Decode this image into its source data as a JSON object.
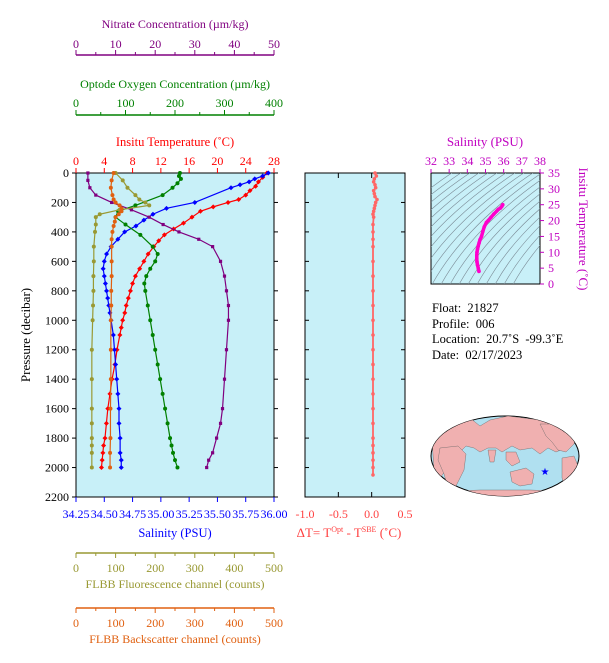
{
  "chart_data": [
    {
      "type": "line",
      "panel": "main profile",
      "y_axis": {
        "label": "Pressure (decibar)",
        "range": [
          0,
          2200
        ],
        "inverted": true,
        "ticks": [
          0,
          200,
          400,
          600,
          800,
          1000,
          1200,
          1400,
          1600,
          1800,
          2000,
          2200
        ],
        "tick_labels": [
          "0",
          "200",
          "400",
          "600",
          "800",
          "1000",
          "1200",
          "1400",
          "1600",
          "1800",
          "2000",
          "2200"
        ]
      },
      "axes": {
        "nitrate": {
          "label": "Nitrate Concentration (µm/kg)",
          "range": [
            0,
            50
          ],
          "ticks": [
            0,
            10,
            20,
            30,
            40,
            50
          ],
          "tick_labels": [
            "0",
            "10",
            "20",
            "30",
            "40",
            "50"
          ],
          "color": "#800080",
          "position": "top"
        },
        "oxygen": {
          "label": "Optode Oxygen Concentration (µm/kg)",
          "range": [
            0,
            400
          ],
          "ticks": [
            0,
            100,
            200,
            300,
            400
          ],
          "tick_labels": [
            "0",
            "100",
            "200",
            "300",
            "400"
          ],
          "color": "#008000",
          "position": "top"
        },
        "temperature": {
          "label": "Insitu Temperature (˚C)",
          "range": [
            0,
            28
          ],
          "ticks": [
            0,
            4,
            8,
            12,
            16,
            20,
            24,
            28
          ],
          "tick_labels": [
            "0",
            "4",
            "8",
            "12",
            "16",
            "20",
            "24",
            "28"
          ],
          "color": "#ff0000",
          "position": "top"
        },
        "salinity": {
          "label": "Salinity (PSU)",
          "range": [
            34.25,
            36.0
          ],
          "ticks": [
            34.25,
            34.5,
            34.75,
            35.0,
            35.25,
            35.5,
            35.75,
            36.0
          ],
          "tick_labels": [
            "34.25",
            "34.50",
            "34.75",
            "35.00",
            "35.25",
            "35.50",
            "35.75",
            "36.00"
          ],
          "color": "#0000ff",
          "position": "bottom"
        },
        "fluorescence": {
          "label": "FLBB Fluorescence channel (counts)",
          "range": [
            0,
            500
          ],
          "ticks": [
            0,
            100,
            200,
            300,
            400,
            500
          ],
          "tick_labels": [
            "0",
            "100",
            "200",
            "300",
            "400",
            "500"
          ],
          "color": "#999933",
          "position": "bottom"
        },
        "backscatter": {
          "label": "FLBB Backscatter channel (counts)",
          "range": [
            0,
            500
          ],
          "ticks": [
            0,
            100,
            200,
            300,
            400,
            500
          ],
          "tick_labels": [
            "0",
            "100",
            "200",
            "300",
            "400",
            "500"
          ],
          "color": "#e06010",
          "position": "bottom"
        }
      },
      "series": [
        {
          "axis": "temperature",
          "color": "#ff0000",
          "marker": "diamond",
          "x": [
            27.0,
            26.4,
            25.8,
            25.4,
            24.6,
            24.0,
            23.0,
            21.5,
            19.4,
            17.6,
            16.4,
            15.2,
            13.8,
            12.5,
            11.7,
            11.0,
            10.2,
            9.6,
            9.0,
            8.4,
            8.0,
            7.7,
            7.4,
            7.1,
            6.9,
            6.6,
            6.4,
            6.2,
            5.8,
            5.5,
            5.1,
            4.8,
            4.5,
            4.3,
            4.1,
            3.9,
            3.8,
            3.7,
            3.6
          ],
          "y": [
            0,
            30,
            60,
            90,
            120,
            150,
            180,
            200,
            230,
            260,
            300,
            340,
            380,
            420,
            460,
            500,
            550,
            600,
            650,
            700,
            750,
            800,
            850,
            900,
            950,
            1000,
            1050,
            1100,
            1200,
            1300,
            1400,
            1500,
            1600,
            1700,
            1800,
            1850,
            1900,
            1950,
            2000
          ]
        },
        {
          "axis": "salinity",
          "color": "#0000ff",
          "marker": "diamond",
          "x": [
            35.95,
            35.9,
            35.83,
            35.78,
            35.7,
            35.62,
            35.3,
            35.05,
            34.93,
            34.85,
            34.78,
            34.68,
            34.62,
            34.56,
            34.52,
            34.5,
            34.49,
            34.5,
            34.51,
            34.52,
            34.53,
            34.54,
            34.55,
            34.56,
            34.58,
            34.59,
            34.6,
            34.61,
            34.62,
            34.63,
            34.63,
            34.64,
            34.64,
            34.65,
            34.65
          ],
          "y": [
            0,
            20,
            40,
            60,
            80,
            100,
            200,
            240,
            280,
            320,
            360,
            400,
            450,
            500,
            550,
            600,
            650,
            700,
            750,
            800,
            850,
            900,
            950,
            1000,
            1100,
            1200,
            1300,
            1400,
            1500,
            1600,
            1700,
            1800,
            1900,
            1950,
            2000
          ]
        },
        {
          "axis": "oxygen",
          "color": "#008000",
          "marker": "circle",
          "x": [
            210,
            208,
            212,
            205,
            195,
            175,
            120,
            85,
            80,
            100,
            130,
            155,
            165,
            160,
            150,
            142,
            138,
            140,
            145,
            150,
            155,
            160,
            165,
            170,
            175,
            180,
            185,
            190,
            193,
            196,
            200,
            205
          ],
          "y": [
            0,
            20,
            40,
            70,
            100,
            150,
            220,
            260,
            300,
            350,
            420,
            500,
            550,
            600,
            650,
            700,
            750,
            800,
            900,
            1000,
            1100,
            1200,
            1300,
            1400,
            1500,
            1600,
            1700,
            1800,
            1850,
            1900,
            1950,
            2000
          ]
        },
        {
          "axis": "nitrate",
          "color": "#800080",
          "marker": "square",
          "x": [
            3.0,
            3.0,
            3.5,
            5.0,
            9.0,
            14.0,
            18.5,
            22.0,
            26.0,
            31.0,
            34.5,
            36.5,
            37.5,
            38.0,
            38.5,
            38.5,
            38.0,
            37.5,
            37.0,
            36.5,
            35.5,
            34.5,
            33.5,
            33.0
          ],
          "y": [
            0,
            50,
            100,
            150,
            200,
            250,
            300,
            350,
            400,
            450,
            500,
            600,
            700,
            800,
            900,
            1000,
            1200,
            1400,
            1600,
            1700,
            1800,
            1900,
            1950,
            2000
          ]
        },
        {
          "axis": "fluorescence",
          "color": "#999933",
          "marker": "circle",
          "x": [
            100,
            118,
            130,
            150,
            160,
            175,
            185,
            110,
            60,
            50,
            50,
            48,
            45,
            45,
            44,
            44,
            43,
            42,
            40,
            40,
            40,
            40,
            40,
            40,
            40,
            40
          ],
          "y": [
            0,
            50,
            100,
            150,
            180,
            200,
            220,
            250,
            280,
            300,
            350,
            400,
            500,
            600,
            700,
            800,
            900,
            1000,
            1200,
            1400,
            1600,
            1700,
            1800,
            1850,
            1900,
            2000
          ]
        },
        {
          "axis": "backscatter",
          "color": "#e06010",
          "marker": "circle",
          "x": [
            95,
            90,
            88,
            92,
            95,
            100,
            110,
            115,
            115,
            108,
            100,
            98,
            95,
            92,
            90,
            90,
            90,
            90,
            89,
            89,
            88,
            88,
            88,
            87,
            87,
            86,
            86
          ],
          "y": [
            0,
            50,
            100,
            150,
            180,
            200,
            220,
            240,
            260,
            280,
            300,
            330,
            360,
            400,
            450,
            500,
            600,
            700,
            800,
            900,
            1000,
            1200,
            1400,
            1600,
            1800,
            1900,
            2000
          ]
        }
      ]
    },
    {
      "type": "scatter",
      "panel": "temperature difference",
      "xlabel": "ΔT= T",
      "xlabel_sup1": "Opt",
      "xlabel_mid": " - T",
      "xlabel_sup2": "SBE",
      "xlabel_unit": " (˚C)",
      "xlim": [
        -1.0,
        0.5
      ],
      "ylim": [
        0,
        2200
      ],
      "ticks": [
        -1.0,
        -0.5,
        0.0,
        0.5
      ],
      "tick_labels": [
        "-1.0",
        "-0.5",
        "0.0",
        "0.5"
      ],
      "color": "#ff6666",
      "x": [
        0.05,
        0.07,
        0.04,
        0.03,
        0.05,
        0.06,
        0.03,
        0.04,
        0.05,
        0.08,
        0.06,
        0.05,
        0.04,
        0.03,
        0.02,
        0.03,
        0.02,
        0.02,
        0.02,
        0.02,
        0.02,
        0.02,
        0.02,
        0.02,
        0.02,
        0.02,
        0.02,
        0.02,
        0.02,
        0.02,
        0.02,
        0.02,
        0.02,
        0.02,
        0.02,
        0.02,
        0.02,
        0.02
      ],
      "y": [
        0,
        20,
        40,
        60,
        80,
        100,
        120,
        140,
        160,
        180,
        200,
        220,
        240,
        260,
        280,
        300,
        350,
        400,
        450,
        500,
        600,
        700,
        800,
        900,
        1000,
        1100,
        1200,
        1300,
        1400,
        1500,
        1600,
        1700,
        1800,
        1850,
        1900,
        1950,
        2000,
        2050
      ]
    },
    {
      "type": "scatter",
      "panel": "T-S diagram",
      "title": "Salinity (PSU)",
      "xlim": [
        32,
        38
      ],
      "ylim": [
        0,
        35
      ],
      "x_ticks": [
        32,
        33,
        34,
        35,
        36,
        37,
        38
      ],
      "x_tick_labels": [
        "32",
        "33",
        "34",
        "35",
        "36",
        "37",
        "38"
      ],
      "y_ticks": [
        0,
        5,
        10,
        15,
        20,
        25,
        30,
        35
      ],
      "y_tick_labels": [
        "0",
        "5",
        "10",
        "15",
        "20",
        "25",
        "30",
        "35"
      ],
      "ylabel": "Insitu Temperature (˚C)",
      "color": "#ff00cc",
      "x": [
        35.95,
        35.9,
        35.83,
        35.7,
        35.62,
        35.45,
        35.3,
        35.15,
        35.05,
        34.93,
        34.85,
        34.78,
        34.7,
        34.65,
        34.6,
        34.56,
        34.53,
        34.52,
        34.52,
        34.53,
        34.56,
        34.6,
        34.64
      ],
      "y": [
        25,
        24.5,
        24,
        23.5,
        23,
        22,
        21,
        20,
        19.4,
        18,
        16.5,
        15,
        14,
        13,
        12,
        11,
        10,
        9,
        8,
        7,
        6,
        5,
        4
      ]
    }
  ],
  "info": {
    "float": "Float:  21827",
    "profile": "Profile:  006",
    "location": "Location:  20.7˚S  -99.3˚E",
    "date": "Date:  02/17/2023"
  },
  "colors": {
    "plot_bg": "#c8f0f8",
    "map_ocean": "#b0e0f0",
    "map_land": "#f0b0b0",
    "float_marker": "#0000ff"
  }
}
